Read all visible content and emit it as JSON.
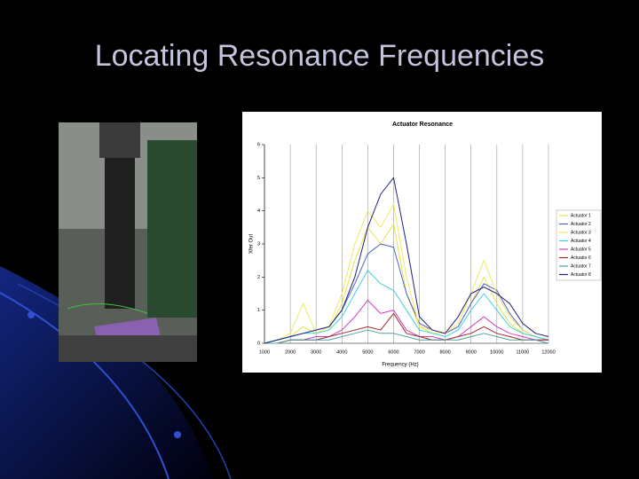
{
  "title": "Locating Resonance Frequencies",
  "chart_data": {
    "type": "line",
    "title": "Actuator Resonance",
    "xlabel": "Frequency (Hz)",
    "ylabel": "Xfer Out",
    "x": [
      1000,
      1500,
      2000,
      2500,
      3000,
      3500,
      4000,
      4500,
      5000,
      5500,
      6000,
      6500,
      7000,
      7500,
      8000,
      8500,
      9000,
      9500,
      10000,
      10500,
      11000,
      11500,
      12000
    ],
    "xlim": [
      1000,
      12000
    ],
    "xticks": [
      1000,
      2000,
      3000,
      4000,
      5000,
      6000,
      7000,
      8000,
      9000,
      10000,
      11000,
      12000
    ],
    "ylim": [
      0,
      6
    ],
    "yticks": [
      0,
      1,
      2,
      3,
      4,
      5,
      6
    ],
    "grid": true,
    "legend": "right",
    "series": [
      {
        "name": "Actuator 1",
        "color": "#e4e44c",
        "values": [
          0,
          0.1,
          0.2,
          0.5,
          0.3,
          0.4,
          1.2,
          2.5,
          3.5,
          3.0,
          3.6,
          1.5,
          0.5,
          0.3,
          0.3,
          0.5,
          1.2,
          2.0,
          1.2,
          0.6,
          0.3,
          0.2,
          0.1
        ]
      },
      {
        "name": "Actuator 2",
        "color": "#5060c8",
        "values": [
          0,
          0.1,
          0.2,
          0.3,
          0.4,
          0.5,
          1.0,
          1.8,
          2.7,
          3.0,
          2.9,
          1.5,
          0.6,
          0.4,
          0.3,
          0.5,
          1.2,
          1.8,
          1.6,
          0.9,
          0.4,
          0.2,
          0.1
        ]
      },
      {
        "name": "Actuator 3",
        "color": "#f0e860",
        "values": [
          0,
          0.1,
          0.3,
          1.2,
          0.3,
          0.5,
          1.5,
          3.0,
          4.0,
          3.5,
          4.2,
          2.0,
          0.5,
          0.4,
          0.3,
          0.6,
          1.5,
          2.5,
          1.5,
          0.8,
          0.4,
          0.2,
          0.1
        ]
      },
      {
        "name": "Actuator 4",
        "color": "#40d0e0",
        "values": [
          0,
          0.1,
          0.2,
          0.3,
          0.3,
          0.4,
          0.8,
          1.5,
          2.2,
          1.8,
          1.6,
          1.0,
          0.4,
          0.3,
          0.2,
          0.4,
          1.0,
          1.5,
          1.0,
          0.5,
          0.3,
          0.2,
          0.1
        ]
      },
      {
        "name": "Actuator 5",
        "color": "#d040c0",
        "values": [
          0,
          0,
          0.1,
          0.1,
          0.2,
          0.2,
          0.4,
          0.8,
          1.3,
          0.9,
          1.0,
          0.4,
          0.2,
          0.2,
          0.1,
          0.2,
          0.5,
          0.8,
          0.5,
          0.3,
          0.2,
          0.1,
          0.1
        ]
      },
      {
        "name": "Actuator 6",
        "color": "#a02828",
        "values": [
          0,
          0,
          0.1,
          0.1,
          0.1,
          0.2,
          0.3,
          0.4,
          0.5,
          0.4,
          0.9,
          0.3,
          0.2,
          0.1,
          0.1,
          0.2,
          0.3,
          0.5,
          0.3,
          0.2,
          0.1,
          0.1,
          0.1
        ]
      },
      {
        "name": "Actuator 7",
        "color": "#50a0a0",
        "values": [
          0,
          0,
          0.1,
          0.1,
          0.1,
          0.1,
          0.2,
          0.3,
          0.4,
          0.3,
          0.3,
          0.2,
          0.1,
          0.1,
          0.1,
          0.1,
          0.2,
          0.3,
          0.2,
          0.1,
          0.1,
          0.1,
          0
        ]
      },
      {
        "name": "Actuator 8",
        "color": "#202080",
        "values": [
          0,
          0.1,
          0.2,
          0.3,
          0.4,
          0.5,
          1.0,
          2.0,
          3.5,
          4.5,
          5.0,
          3.0,
          0.8,
          0.4,
          0.3,
          0.8,
          1.5,
          1.7,
          1.5,
          1.2,
          0.6,
          0.3,
          0.2
        ]
      }
    ]
  }
}
